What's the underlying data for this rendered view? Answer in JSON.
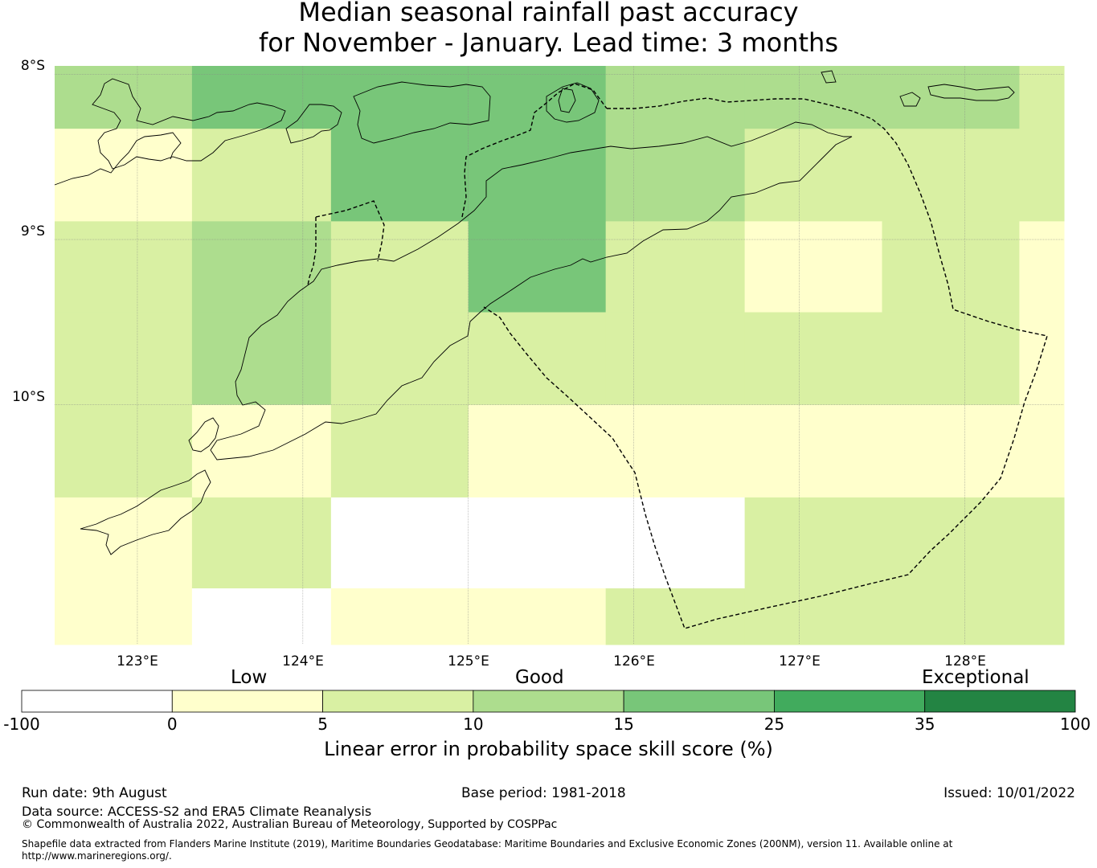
{
  "title_line1": "Median seasonal rainfall past accuracy",
  "title_line2": "for November - January. Lead time: 3 months",
  "map": {
    "lat_labels": [
      "8°S",
      "9°S",
      "10°S"
    ],
    "lon_labels": [
      "123°E",
      "124°E",
      "125°E",
      "126°E",
      "127°E",
      "128°E"
    ],
    "extent": {
      "lon_min": 122.5,
      "lon_max": 128.6,
      "lat_max": -7.95,
      "lat_min": -11.45
    },
    "grid_lons": [
      122.5,
      123.33,
      124.17,
      125.0,
      125.83,
      126.67,
      127.5,
      128.33,
      128.6
    ],
    "grid_lats": [
      -7.95,
      -8.33,
      -8.89,
      -9.44,
      -10.0,
      -10.56,
      -11.11,
      -11.45
    ],
    "cells": [
      [
        3,
        4,
        4,
        4,
        3,
        3,
        3,
        2,
        3
      ],
      [
        1,
        2,
        4,
        4,
        3,
        2,
        2,
        2,
        2
      ],
      [
        2,
        3,
        2,
        4,
        2,
        1,
        2,
        1,
        1
      ],
      [
        2,
        3,
        2,
        2,
        2,
        2,
        2,
        1,
        2
      ],
      [
        2,
        1,
        2,
        1,
        1,
        1,
        1,
        1,
        2
      ],
      [
        1,
        2,
        0,
        0,
        0,
        2,
        2,
        2,
        2
      ],
      [
        1,
        0,
        1,
        1,
        2,
        2,
        2,
        2,
        2
      ]
    ]
  },
  "colorbar": {
    "colors": [
      "#ffffff",
      "#ffffcc",
      "#d9f0a3",
      "#addd8e",
      "#78c679",
      "#41ab5d",
      "#238443"
    ],
    "ticks": [
      "-100",
      "0",
      "5",
      "10",
      "15",
      "25",
      "35",
      "100"
    ],
    "categories": [
      "Low",
      "Good",
      "Exceptional"
    ],
    "label": "Linear error in probability space skill score (%)"
  },
  "footer": {
    "run_date": "Run date: 9th August",
    "base_period": "Base period: 1981-2018",
    "issued": "Issued: 10/01/2022",
    "data_source": "Data source: ACCESS-S2 and ERA5 Climate Reanalysis",
    "copyright": "© Commonwealth of Australia 2022, Australian Bureau of Meteorology, Supported by COSPPac",
    "shapefile": "Shapefile data extracted from Flanders Marine Institute (2019), Maritime Boundaries Geodatabase: Maritime Boundaries and Exclusive Economic Zones (200NM), version 11. Available online at http://www.marineregions.org/."
  }
}
